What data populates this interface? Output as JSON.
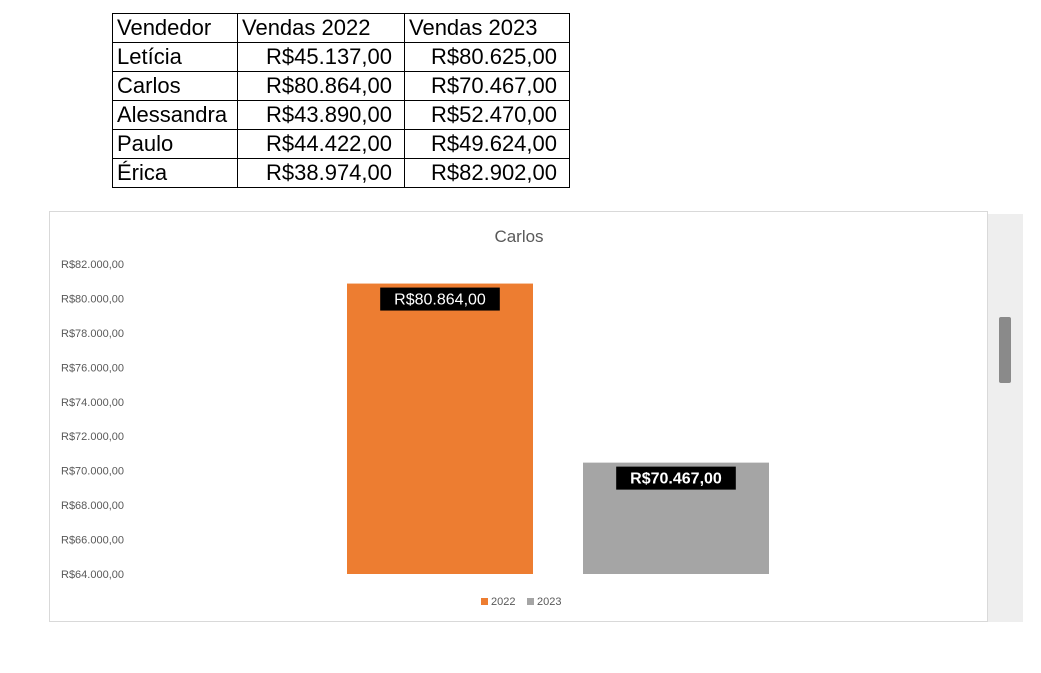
{
  "table": {
    "headers": [
      "Vendedor",
      "Vendas 2022",
      "Vendas 2023"
    ],
    "rows": [
      {
        "name": "Letícia",
        "v2022": "R$45.137,00",
        "v2023": "R$80.625,00"
      },
      {
        "name": "Carlos",
        "v2022": "R$80.864,00",
        "v2023": "R$70.467,00"
      },
      {
        "name": "Alessandra",
        "v2022": "R$43.890,00",
        "v2023": "R$52.470,00"
      },
      {
        "name": "Paulo",
        "v2022": "R$44.422,00",
        "v2023": "R$49.624,00"
      },
      {
        "name": "Érica",
        "v2022": "R$38.974,00",
        "v2023": "R$82.902,00"
      }
    ]
  },
  "chart_data": {
    "type": "bar",
    "title": "Carlos",
    "categories": [
      "2022",
      "2023"
    ],
    "values": [
      80864,
      70467
    ],
    "data_labels": [
      "R$80.864,00",
      "R$70.467,00"
    ],
    "colors": [
      "#ed7d31",
      "#a5a5a5"
    ],
    "ylim": [
      64000,
      82000
    ],
    "y_ticks": [
      82000,
      80000,
      78000,
      76000,
      74000,
      72000,
      70000,
      68000,
      66000,
      64000
    ],
    "y_tick_labels": [
      "R$82.000,00",
      "R$80.000,00",
      "R$78.000,00",
      "R$76.000,00",
      "R$74.000,00",
      "R$72.000,00",
      "R$70.000,00",
      "R$68.000,00",
      "R$66.000,00",
      "R$64.000,00"
    ],
    "legend": {
      "position": "bottom",
      "entries": [
        "2022",
        "2023"
      ]
    },
    "grid": false
  }
}
